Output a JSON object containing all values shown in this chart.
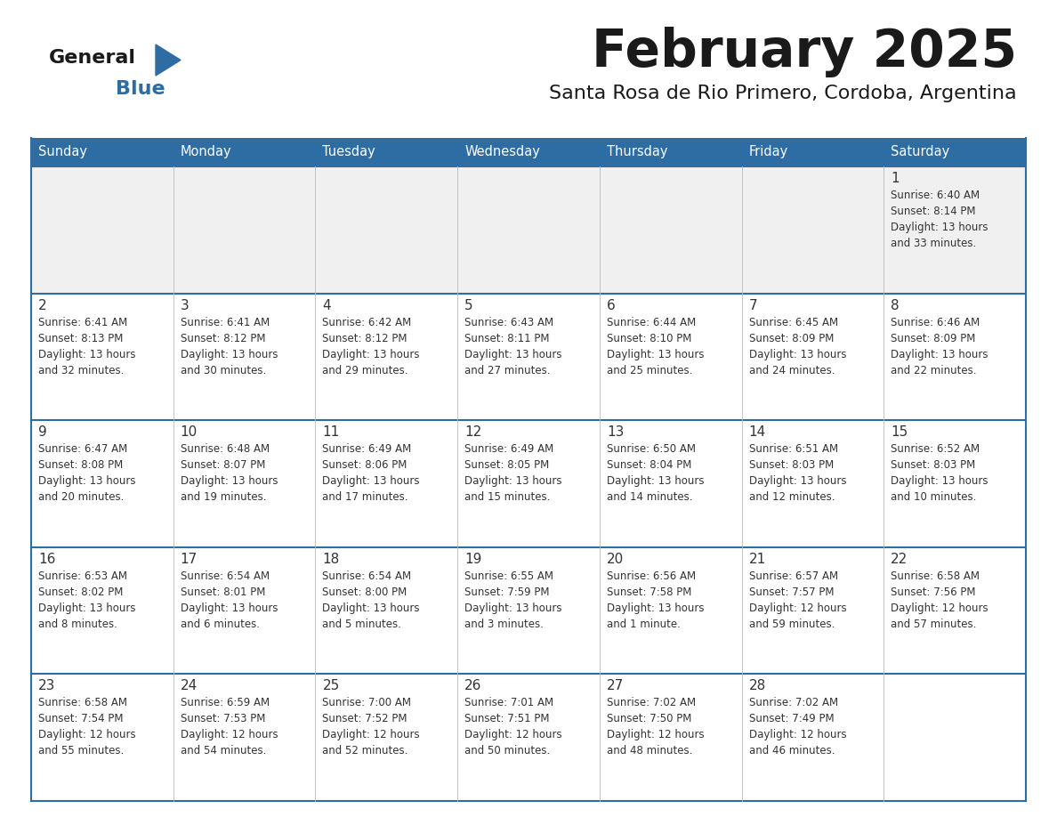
{
  "title": "February 2025",
  "subtitle": "Santa Rosa de Rio Primero, Cordoba, Argentina",
  "days_of_week": [
    "Sunday",
    "Monday",
    "Tuesday",
    "Wednesday",
    "Thursday",
    "Friday",
    "Saturday"
  ],
  "header_bg": "#2E6DA4",
  "header_text": "#FFFFFF",
  "cell_bg": "#FFFFFF",
  "first_row_bg": "#F0F0F0",
  "day_number_color": "#333333",
  "text_color": "#333333",
  "line_color": "#2E6DA4",
  "border_color": "#2E6DA4",
  "logo_general_color": "#1a1a1a",
  "logo_blue_color": "#2E6DA4",
  "logo_triangle_color": "#2E6DA4",
  "calendar_data": [
    [
      null,
      null,
      null,
      null,
      null,
      null,
      {
        "day": 1,
        "sunrise": "6:40 AM",
        "sunset": "8:14 PM",
        "daylight_h": "13 hours",
        "daylight_m": "and 33 minutes."
      }
    ],
    [
      {
        "day": 2,
        "sunrise": "6:41 AM",
        "sunset": "8:13 PM",
        "daylight_h": "13 hours",
        "daylight_m": "and 32 minutes."
      },
      {
        "day": 3,
        "sunrise": "6:41 AM",
        "sunset": "8:12 PM",
        "daylight_h": "13 hours",
        "daylight_m": "and 30 minutes."
      },
      {
        "day": 4,
        "sunrise": "6:42 AM",
        "sunset": "8:12 PM",
        "daylight_h": "13 hours",
        "daylight_m": "and 29 minutes."
      },
      {
        "day": 5,
        "sunrise": "6:43 AM",
        "sunset": "8:11 PM",
        "daylight_h": "13 hours",
        "daylight_m": "and 27 minutes."
      },
      {
        "day": 6,
        "sunrise": "6:44 AM",
        "sunset": "8:10 PM",
        "daylight_h": "13 hours",
        "daylight_m": "and 25 minutes."
      },
      {
        "day": 7,
        "sunrise": "6:45 AM",
        "sunset": "8:09 PM",
        "daylight_h": "13 hours",
        "daylight_m": "and 24 minutes."
      },
      {
        "day": 8,
        "sunrise": "6:46 AM",
        "sunset": "8:09 PM",
        "daylight_h": "13 hours",
        "daylight_m": "and 22 minutes."
      }
    ],
    [
      {
        "day": 9,
        "sunrise": "6:47 AM",
        "sunset": "8:08 PM",
        "daylight_h": "13 hours",
        "daylight_m": "and 20 minutes."
      },
      {
        "day": 10,
        "sunrise": "6:48 AM",
        "sunset": "8:07 PM",
        "daylight_h": "13 hours",
        "daylight_m": "and 19 minutes."
      },
      {
        "day": 11,
        "sunrise": "6:49 AM",
        "sunset": "8:06 PM",
        "daylight_h": "13 hours",
        "daylight_m": "and 17 minutes."
      },
      {
        "day": 12,
        "sunrise": "6:49 AM",
        "sunset": "8:05 PM",
        "daylight_h": "13 hours",
        "daylight_m": "and 15 minutes."
      },
      {
        "day": 13,
        "sunrise": "6:50 AM",
        "sunset": "8:04 PM",
        "daylight_h": "13 hours",
        "daylight_m": "and 14 minutes."
      },
      {
        "day": 14,
        "sunrise": "6:51 AM",
        "sunset": "8:03 PM",
        "daylight_h": "13 hours",
        "daylight_m": "and 12 minutes."
      },
      {
        "day": 15,
        "sunrise": "6:52 AM",
        "sunset": "8:03 PM",
        "daylight_h": "13 hours",
        "daylight_m": "and 10 minutes."
      }
    ],
    [
      {
        "day": 16,
        "sunrise": "6:53 AM",
        "sunset": "8:02 PM",
        "daylight_h": "13 hours",
        "daylight_m": "and 8 minutes."
      },
      {
        "day": 17,
        "sunrise": "6:54 AM",
        "sunset": "8:01 PM",
        "daylight_h": "13 hours",
        "daylight_m": "and 6 minutes."
      },
      {
        "day": 18,
        "sunrise": "6:54 AM",
        "sunset": "8:00 PM",
        "daylight_h": "13 hours",
        "daylight_m": "and 5 minutes."
      },
      {
        "day": 19,
        "sunrise": "6:55 AM",
        "sunset": "7:59 PM",
        "daylight_h": "13 hours",
        "daylight_m": "and 3 minutes."
      },
      {
        "day": 20,
        "sunrise": "6:56 AM",
        "sunset": "7:58 PM",
        "daylight_h": "13 hours",
        "daylight_m": "and 1 minute."
      },
      {
        "day": 21,
        "sunrise": "6:57 AM",
        "sunset": "7:57 PM",
        "daylight_h": "12 hours",
        "daylight_m": "and 59 minutes."
      },
      {
        "day": 22,
        "sunrise": "6:58 AM",
        "sunset": "7:56 PM",
        "daylight_h": "12 hours",
        "daylight_m": "and 57 minutes."
      }
    ],
    [
      {
        "day": 23,
        "sunrise": "6:58 AM",
        "sunset": "7:54 PM",
        "daylight_h": "12 hours",
        "daylight_m": "and 55 minutes."
      },
      {
        "day": 24,
        "sunrise": "6:59 AM",
        "sunset": "7:53 PM",
        "daylight_h": "12 hours",
        "daylight_m": "and 54 minutes."
      },
      {
        "day": 25,
        "sunrise": "7:00 AM",
        "sunset": "7:52 PM",
        "daylight_h": "12 hours",
        "daylight_m": "and 52 minutes."
      },
      {
        "day": 26,
        "sunrise": "7:01 AM",
        "sunset": "7:51 PM",
        "daylight_h": "12 hours",
        "daylight_m": "and 50 minutes."
      },
      {
        "day": 27,
        "sunrise": "7:02 AM",
        "sunset": "7:50 PM",
        "daylight_h": "12 hours",
        "daylight_m": "and 48 minutes."
      },
      {
        "day": 28,
        "sunrise": "7:02 AM",
        "sunset": "7:49 PM",
        "daylight_h": "12 hours",
        "daylight_m": "and 46 minutes."
      },
      null
    ]
  ]
}
